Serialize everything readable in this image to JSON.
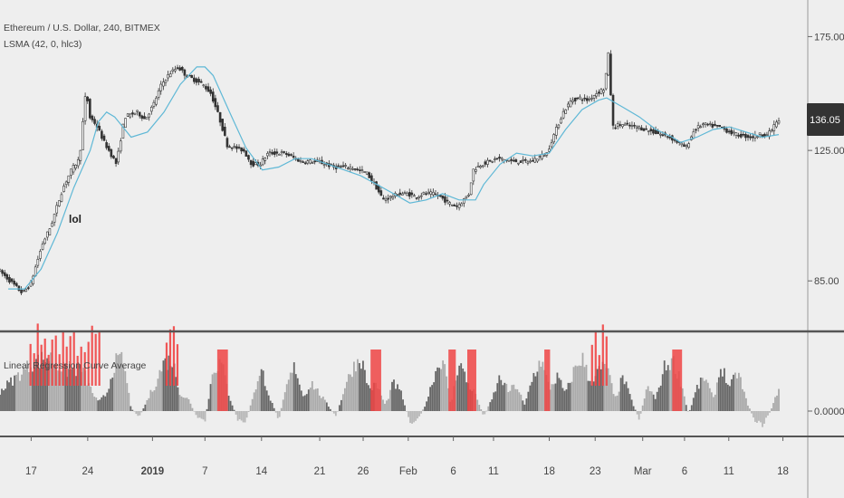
{
  "header": {
    "symbol": "Ethereum / U.S. Dollar, 240, BITMEX",
    "lsma_label": "LSMA (42, 0, hlc3)",
    "indicator_label": "Linear Regression Curve Average"
  },
  "annotation": {
    "text": "lol"
  },
  "price_badge": {
    "text": "136.05",
    "bg": "#333333",
    "fg": "#ffffff"
  },
  "colors": {
    "candle": "#333333",
    "lsma": "#5fb8d6",
    "hist_dark": "#666666",
    "hist_light": "#aaaaaa",
    "hist_neg": "#b8b8b8",
    "signal": "#ef4444",
    "separator": "#555555",
    "background": "#eeeeee"
  },
  "chart_data": [
    {
      "type": "candlestick",
      "title": "Ethereum / U.S. Dollar, 240, BITMEX",
      "y_axis": {
        "ticks": [
          175.0,
          125.0,
          85.0
        ],
        "tick_labels": [
          "175.00",
          "125.00",
          "85.00"
        ],
        "scale": "log",
        "ylim": [
          74,
          195
        ]
      },
      "last_price": 136.05,
      "price_path": [
        {
          "t": 0,
          "p": 88
        },
        {
          "t": 2,
          "p": 84
        },
        {
          "t": 3,
          "p": 82
        },
        {
          "t": 4,
          "p": 84
        },
        {
          "t": 5.5,
          "p": 95
        },
        {
          "t": 6.5,
          "p": 100
        },
        {
          "t": 8,
          "p": 112
        },
        {
          "t": 9,
          "p": 118
        },
        {
          "t": 10,
          "p": 122
        },
        {
          "t": 10.8,
          "p": 150
        },
        {
          "t": 11.2,
          "p": 138
        },
        {
          "t": 12,
          "p": 135
        },
        {
          "t": 13,
          "p": 128
        },
        {
          "t": 14.5,
          "p": 120
        },
        {
          "t": 15.5,
          "p": 138
        },
        {
          "t": 17,
          "p": 140
        },
        {
          "t": 18,
          "p": 137
        },
        {
          "t": 19,
          "p": 143
        },
        {
          "t": 20,
          "p": 152
        },
        {
          "t": 21,
          "p": 157
        },
        {
          "t": 22,
          "p": 160
        },
        {
          "t": 23,
          "p": 156
        },
        {
          "t": 24,
          "p": 154
        },
        {
          "t": 25,
          "p": 152
        },
        {
          "t": 26,
          "p": 148
        },
        {
          "t": 27,
          "p": 138
        },
        {
          "t": 28,
          "p": 127
        },
        {
          "t": 29,
          "p": 126
        },
        {
          "t": 30,
          "p": 125
        },
        {
          "t": 31,
          "p": 120
        },
        {
          "t": 32,
          "p": 120
        },
        {
          "t": 33,
          "p": 124
        },
        {
          "t": 35,
          "p": 124
        },
        {
          "t": 37,
          "p": 121
        },
        {
          "t": 39,
          "p": 121
        },
        {
          "t": 41,
          "p": 119
        },
        {
          "t": 43,
          "p": 119
        },
        {
          "t": 45,
          "p": 117
        },
        {
          "t": 46,
          "p": 113
        },
        {
          "t": 47,
          "p": 108
        },
        {
          "t": 48,
          "p": 109
        },
        {
          "t": 49,
          "p": 110
        },
        {
          "t": 50,
          "p": 110
        },
        {
          "t": 51,
          "p": 109
        },
        {
          "t": 52,
          "p": 110
        },
        {
          "t": 53,
          "p": 110
        },
        {
          "t": 54,
          "p": 109
        },
        {
          "t": 55,
          "p": 107
        },
        {
          "t": 56,
          "p": 106
        },
        {
          "t": 56.5,
          "p": 107
        },
        {
          "t": 57.5,
          "p": 110
        },
        {
          "t": 58,
          "p": 118
        },
        {
          "t": 59,
          "p": 120
        },
        {
          "t": 61,
          "p": 122
        },
        {
          "t": 63,
          "p": 121
        },
        {
          "t": 65,
          "p": 121
        },
        {
          "t": 67,
          "p": 124
        },
        {
          "t": 69,
          "p": 140
        },
        {
          "t": 70,
          "p": 145
        },
        {
          "t": 71,
          "p": 146
        },
        {
          "t": 72,
          "p": 145
        },
        {
          "t": 73,
          "p": 148
        },
        {
          "t": 74,
          "p": 150
        },
        {
          "t": 74.5,
          "p": 166
        },
        {
          "t": 75,
          "p": 134
        },
        {
          "t": 76,
          "p": 135
        },
        {
          "t": 78,
          "p": 134
        },
        {
          "t": 80,
          "p": 132
        },
        {
          "t": 82,
          "p": 130
        },
        {
          "t": 83,
          "p": 128
        },
        {
          "t": 84,
          "p": 126
        },
        {
          "t": 85,
          "p": 133
        },
        {
          "t": 86,
          "p": 135
        },
        {
          "t": 88,
          "p": 134
        },
        {
          "t": 90,
          "p": 131
        },
        {
          "t": 92,
          "p": 130
        },
        {
          "t": 93,
          "p": 131
        },
        {
          "t": 94,
          "p": 131
        },
        {
          "t": 95,
          "p": 136
        }
      ],
      "lsma_path": [
        {
          "t": 1,
          "p": 83
        },
        {
          "t": 3,
          "p": 83
        },
        {
          "t": 5,
          "p": 88
        },
        {
          "t": 7,
          "p": 98
        },
        {
          "t": 9,
          "p": 112
        },
        {
          "t": 11,
          "p": 125
        },
        {
          "t": 12,
          "p": 136
        },
        {
          "t": 13,
          "p": 140
        },
        {
          "t": 14,
          "p": 138
        },
        {
          "t": 16,
          "p": 130
        },
        {
          "t": 18,
          "p": 132
        },
        {
          "t": 20,
          "p": 140
        },
        {
          "t": 22,
          "p": 152
        },
        {
          "t": 24,
          "p": 160
        },
        {
          "t": 25,
          "p": 160
        },
        {
          "t": 26,
          "p": 156
        },
        {
          "t": 28,
          "p": 140
        },
        {
          "t": 30,
          "p": 126
        },
        {
          "t": 32,
          "p": 118
        },
        {
          "t": 34,
          "p": 119
        },
        {
          "t": 36,
          "p": 122
        },
        {
          "t": 38,
          "p": 122
        },
        {
          "t": 40,
          "p": 120
        },
        {
          "t": 42,
          "p": 118
        },
        {
          "t": 44,
          "p": 116
        },
        {
          "t": 46,
          "p": 113
        },
        {
          "t": 48,
          "p": 110
        },
        {
          "t": 50,
          "p": 107
        },
        {
          "t": 52,
          "p": 108
        },
        {
          "t": 54,
          "p": 110
        },
        {
          "t": 56,
          "p": 108
        },
        {
          "t": 58,
          "p": 108
        },
        {
          "t": 59,
          "p": 113
        },
        {
          "t": 61,
          "p": 120
        },
        {
          "t": 63,
          "p": 124
        },
        {
          "t": 65,
          "p": 123
        },
        {
          "t": 67,
          "p": 124
        },
        {
          "t": 69,
          "p": 133
        },
        {
          "t": 71,
          "p": 141
        },
        {
          "t": 73,
          "p": 145
        },
        {
          "t": 74,
          "p": 146
        },
        {
          "t": 76,
          "p": 142
        },
        {
          "t": 78,
          "p": 138
        },
        {
          "t": 80,
          "p": 133
        },
        {
          "t": 82,
          "p": 130
        },
        {
          "t": 83,
          "p": 128
        },
        {
          "t": 85,
          "p": 130
        },
        {
          "t": 87,
          "p": 133
        },
        {
          "t": 89,
          "p": 134
        },
        {
          "t": 91,
          "p": 132
        },
        {
          "t": 93,
          "p": 130
        },
        {
          "t": 95,
          "p": 131
        }
      ]
    },
    {
      "type": "bar",
      "title": "Linear Regression Curve Average",
      "y_axis": {
        "ticks": [
          0.0
        ],
        "tick_labels": [
          "0.0000"
        ]
      },
      "histogram_profile": [
        {
          "t": 0,
          "v": 0.35
        },
        {
          "t": 2,
          "v": 0.6
        },
        {
          "t": 4,
          "v": 0.85
        },
        {
          "t": 6,
          "v": 0.95
        },
        {
          "t": 8,
          "v": 0.7
        },
        {
          "t": 10,
          "v": 0.75
        },
        {
          "t": 11,
          "v": 0.4
        },
        {
          "t": 12,
          "v": 0.15
        },
        {
          "t": 13,
          "v": 0.3
        },
        {
          "t": 14,
          "v": 0.85
        },
        {
          "t": 15,
          "v": 0.9
        },
        {
          "t": 16,
          "v": 0.05
        },
        {
          "t": 17,
          "v": -0.1
        },
        {
          "t": 18,
          "v": 0.2
        },
        {
          "t": 19,
          "v": 0.5
        },
        {
          "t": 20,
          "v": 0.85
        },
        {
          "t": 21,
          "v": 0.9
        },
        {
          "t": 22,
          "v": 0.3
        },
        {
          "t": 23,
          "v": 0.2
        },
        {
          "t": 24,
          "v": -0.1
        },
        {
          "t": 25,
          "v": -0.2
        },
        {
          "t": 26,
          "v": 0.75
        },
        {
          "t": 27,
          "v": 0.85
        },
        {
          "t": 28,
          "v": 0.25
        },
        {
          "t": 29,
          "v": -0.15
        },
        {
          "t": 30,
          "v": -0.2
        },
        {
          "t": 31,
          "v": 0.35
        },
        {
          "t": 32,
          "v": 0.7
        },
        {
          "t": 33,
          "v": 0.2
        },
        {
          "t": 34,
          "v": -0.15
        },
        {
          "t": 35,
          "v": 0.45
        },
        {
          "t": 36,
          "v": 0.8
        },
        {
          "t": 37,
          "v": 0.25
        },
        {
          "t": 38,
          "v": 0.5
        },
        {
          "t": 39,
          "v": 0.3
        },
        {
          "t": 40,
          "v": 0.1
        },
        {
          "t": 41,
          "v": -0.1
        },
        {
          "t": 42,
          "v": 0.4
        },
        {
          "t": 43,
          "v": 0.75
        },
        {
          "t": 44,
          "v": 0.95
        },
        {
          "t": 45,
          "v": 0.4
        },
        {
          "t": 46,
          "v": 0.45
        },
        {
          "t": 47,
          "v": 0.1
        },
        {
          "t": 48,
          "v": 0.5
        },
        {
          "t": 49,
          "v": 0.3
        },
        {
          "t": 50,
          "v": -0.2
        },
        {
          "t": 51,
          "v": -0.15
        },
        {
          "t": 52,
          "v": 0.15
        },
        {
          "t": 53,
          "v": 0.65
        },
        {
          "t": 54,
          "v": 0.95
        },
        {
          "t": 55,
          "v": 0.1
        },
        {
          "t": 56,
          "v": 0.9
        },
        {
          "t": 57,
          "v": 0.5
        },
        {
          "t": 58,
          "v": 0.3
        },
        {
          "t": 59,
          "v": -0.1
        },
        {
          "t": 60,
          "v": 0.2
        },
        {
          "t": 61,
          "v": 0.6
        },
        {
          "t": 62,
          "v": 0.35
        },
        {
          "t": 63,
          "v": 0.45
        },
        {
          "t": 64,
          "v": 0.1
        },
        {
          "t": 65,
          "v": 0.6
        },
        {
          "t": 66,
          "v": 0.9
        },
        {
          "t": 67,
          "v": 0.4
        },
        {
          "t": 68,
          "v": 0.6
        },
        {
          "t": 69,
          "v": 0.3
        },
        {
          "t": 70,
          "v": 0.7
        },
        {
          "t": 71,
          "v": 0.95
        },
        {
          "t": 72,
          "v": 0.5
        },
        {
          "t": 73,
          "v": 0.7
        },
        {
          "t": 74,
          "v": 0.8
        },
        {
          "t": 75,
          "v": 0.2
        },
        {
          "t": 76,
          "v": 0.6
        },
        {
          "t": 77,
          "v": 0.2
        },
        {
          "t": 78,
          "v": -0.15
        },
        {
          "t": 79,
          "v": 0.45
        },
        {
          "t": 80,
          "v": 0.2
        },
        {
          "t": 81,
          "v": 0.75
        },
        {
          "t": 82,
          "v": 0.9
        },
        {
          "t": 83,
          "v": 0.55
        },
        {
          "t": 84,
          "v": -0.05
        },
        {
          "t": 85,
          "v": 0.4
        },
        {
          "t": 86,
          "v": 0.6
        },
        {
          "t": 87,
          "v": 0.2
        },
        {
          "t": 88,
          "v": 0.8
        },
        {
          "t": 89,
          "v": 0.4
        },
        {
          "t": 90,
          "v": 0.7
        },
        {
          "t": 91,
          "v": 0.2
        },
        {
          "t": 92,
          "v": -0.15
        },
        {
          "t": 93,
          "v": -0.25
        },
        {
          "t": 94,
          "v": 0.0
        },
        {
          "t": 95,
          "v": 0.4
        }
      ],
      "signal_zones": [
        {
          "start": 3.6,
          "end": 12.0
        },
        {
          "start": 20.2,
          "end": 21.8
        },
        {
          "start": 26.5,
          "end": 27.8
        },
        {
          "start": 45.2,
          "end": 46.5
        },
        {
          "start": 54.7,
          "end": 55.6
        },
        {
          "start": 57.0,
          "end": 58.1
        },
        {
          "start": 66.4,
          "end": 67.1
        },
        {
          "start": 72.1,
          "end": 74.2
        },
        {
          "start": 82.0,
          "end": 83.2
        }
      ]
    }
  ],
  "x_axis": {
    "ticks": [
      {
        "t": 3.8,
        "label": "17",
        "bold": false
      },
      {
        "t": 10.7,
        "label": "24",
        "bold": false
      },
      {
        "t": 18.6,
        "label": "2019",
        "bold": true
      },
      {
        "t": 25.0,
        "label": "7",
        "bold": false
      },
      {
        "t": 31.9,
        "label": "14",
        "bold": false
      },
      {
        "t": 39.0,
        "label": "21",
        "bold": false
      },
      {
        "t": 44.3,
        "label": "26",
        "bold": false
      },
      {
        "t": 49.8,
        "label": "Feb",
        "bold": false
      },
      {
        "t": 55.3,
        "label": "6",
        "bold": false
      },
      {
        "t": 60.2,
        "label": "11",
        "bold": false
      },
      {
        "t": 67.0,
        "label": "18",
        "bold": false
      },
      {
        "t": 72.6,
        "label": "23",
        "bold": false
      },
      {
        "t": 78.4,
        "label": "Mar",
        "bold": false
      },
      {
        "t": 83.5,
        "label": "6",
        "bold": false
      },
      {
        "t": 88.9,
        "label": "11",
        "bold": false
      },
      {
        "t": 95.5,
        "label": "18",
        "bold": false
      }
    ]
  }
}
